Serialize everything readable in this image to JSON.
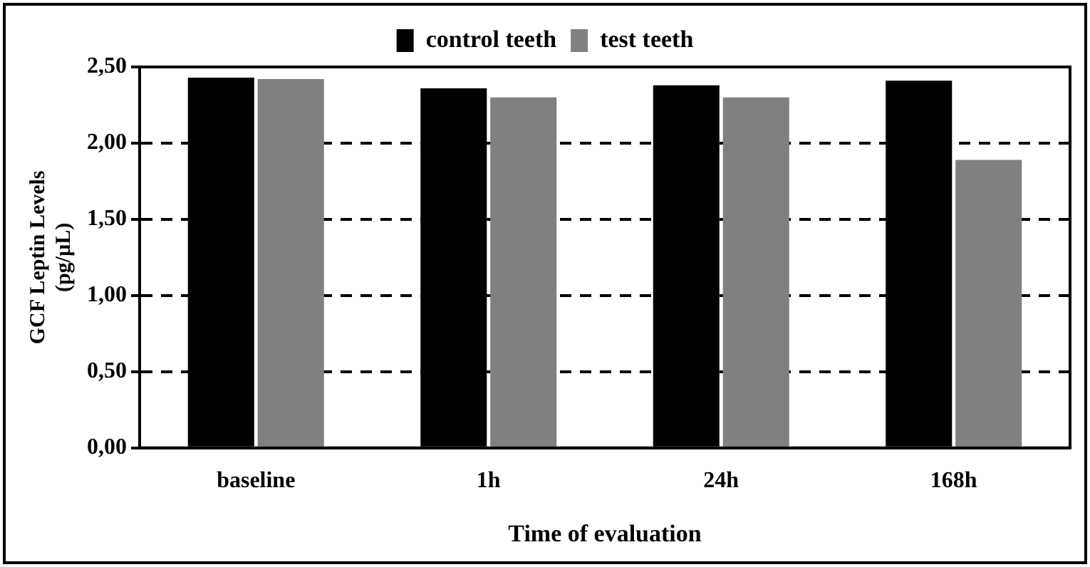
{
  "chart_data": {
    "type": "bar",
    "xlabel": "Time of evaluation",
    "ylabel": "GCF Leptin Levels (pg/µL)",
    "categories": [
      "baseline",
      "1h",
      "24h",
      "168h"
    ],
    "series": [
      {
        "name": "control teeth",
        "color": "#000000",
        "values": [
          2.43,
          2.36,
          2.38,
          2.41
        ]
      },
      {
        "name": "test teeth",
        "color": "#808080",
        "values": [
          2.42,
          2.3,
          2.3,
          1.89
        ]
      }
    ],
    "ylim": [
      0,
      2.5
    ],
    "yticks": [
      {
        "value": 0,
        "label": "0,00"
      },
      {
        "value": 0.5,
        "label": "0,50"
      },
      {
        "value": 1,
        "label": "1,00"
      },
      {
        "value": 1.5,
        "label": "1,50"
      },
      {
        "value": 2,
        "label": "2,00"
      },
      {
        "value": 2.5,
        "label": "2,50"
      }
    ],
    "grid": "y",
    "legend": "top"
  }
}
